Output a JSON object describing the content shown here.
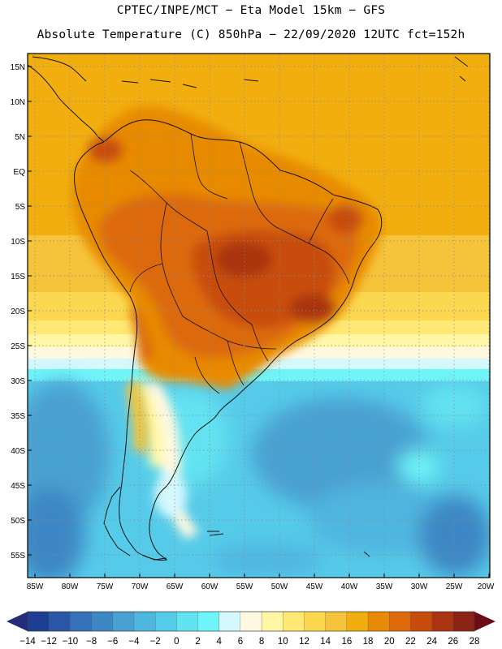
{
  "header": {
    "line1": "CPTEC/INPE/MCT −  Eta Model 15km − GFS",
    "line2": "Absolute Temperature (C) 850hPa − 22/09/2020 12UTC fct=152h"
  },
  "axes": {
    "lat_labels": [
      "15N",
      "10N",
      "5N",
      "EQ",
      "5S",
      "10S",
      "15S",
      "20S",
      "25S",
      "30S",
      "35S",
      "40S",
      "45S",
      "50S",
      "55S"
    ],
    "lon_labels": [
      "85W",
      "80W",
      "75W",
      "70W",
      "65W",
      "60W",
      "55W",
      "50W",
      "45W",
      "40W",
      "35W",
      "30W",
      "25W",
      "20W"
    ]
  },
  "legend": {
    "colors": [
      "#1e3e94",
      "#2a57a8",
      "#3571b8",
      "#3e87c5",
      "#49a0d2",
      "#4fb6e0",
      "#56cbe9",
      "#63e3f1",
      "#6ff5f9",
      "#d4f8fc",
      "#fff8e0",
      "#fff7a6",
      "#ffe873",
      "#fbd850",
      "#f5c43a",
      "#f2ae0e",
      "#e88a05",
      "#dc6a0a",
      "#c84d0c",
      "#aa3510",
      "#8b2414"
    ],
    "labels": [
      "−14",
      "−12",
      "−10",
      "−8",
      "−6",
      "−4",
      "−2",
      "0",
      "2",
      "4",
      "6",
      "8",
      "10",
      "12",
      "14",
      "16",
      "18",
      "20",
      "22",
      "24",
      "26",
      "28"
    ],
    "arrow_low": "#252d7a",
    "arrow_high": "#6d0b19"
  }
}
